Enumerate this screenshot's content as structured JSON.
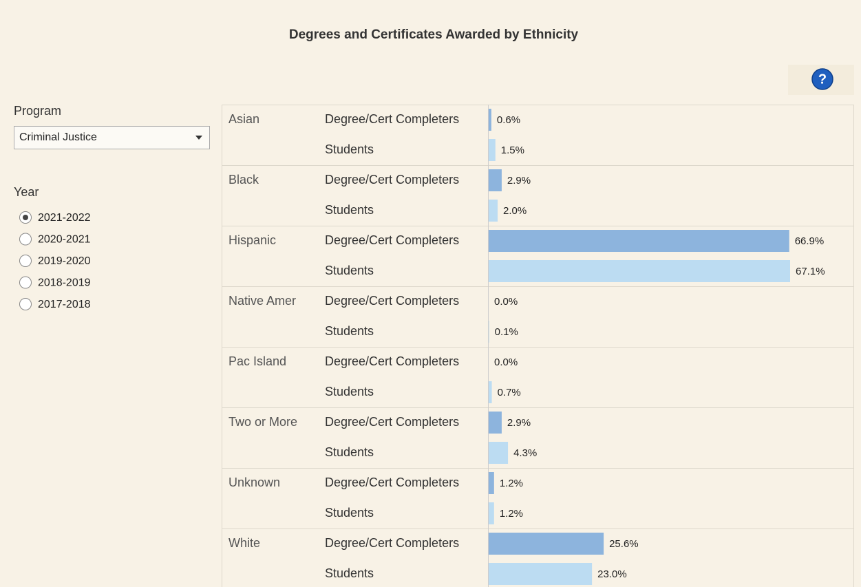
{
  "title": "Degrees and Certificates Awarded by Ethnicity",
  "help_icon": "?",
  "controls": {
    "program_label": "Program",
    "program_value": "Criminal Justice",
    "year_label": "Year",
    "years": [
      "2021-2022",
      "2020-2021",
      "2019-2020",
      "2018-2019",
      "2017-2018"
    ],
    "selected_index": 0
  },
  "chart_data": {
    "type": "bar",
    "orientation": "horizontal",
    "categories": [
      "Asian",
      "Black",
      "Hispanic",
      "Native Amer",
      "Pac Island",
      "Two or More",
      "Unknown",
      "White"
    ],
    "series": [
      {
        "name": "Degree/Cert Completers",
        "color": "#8db4dd",
        "values": [
          0.6,
          2.9,
          66.9,
          0.0,
          0.0,
          2.9,
          1.2,
          25.6
        ],
        "value_labels": [
          "0.6%",
          "2.9%",
          "66.9%",
          "0.0%",
          "0.0%",
          "2.9%",
          "1.2%",
          "25.6%"
        ]
      },
      {
        "name": "Students",
        "color": "#bcdcf2",
        "values": [
          1.5,
          2.0,
          67.1,
          0.1,
          0.7,
          4.3,
          1.2,
          23.0
        ],
        "value_labels": [
          "1.5%",
          "2.0%",
          "67.1%",
          "0.1%",
          "0.7%",
          "4.3%",
          "1.2%",
          "23.0%"
        ]
      }
    ]
  }
}
